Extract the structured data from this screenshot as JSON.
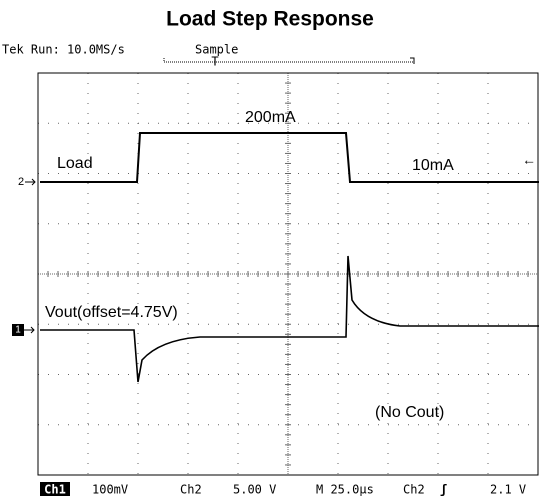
{
  "title": "Load Step Response",
  "status": {
    "run": "Tek Run: 10.0MS/s",
    "mode": "Sample",
    "trigger": "T"
  },
  "annotations": {
    "load": "Load",
    "high": "200mA",
    "low": "10mA",
    "vout": "Vout(offset=4.75V)",
    "note": "(No Cout)"
  },
  "markers": {
    "ch2": "2",
    "ch1": "1"
  },
  "footer": {
    "ch1": "Ch1",
    "ch1_scale": "100mV",
    "ch2": "Ch2",
    "ch2_scale": "5.00 V",
    "timebase": "M 25.0µs",
    "trig_src": "Ch2",
    "trig_slope": "ʃ",
    "trig_level": "2.1 V"
  }
}
